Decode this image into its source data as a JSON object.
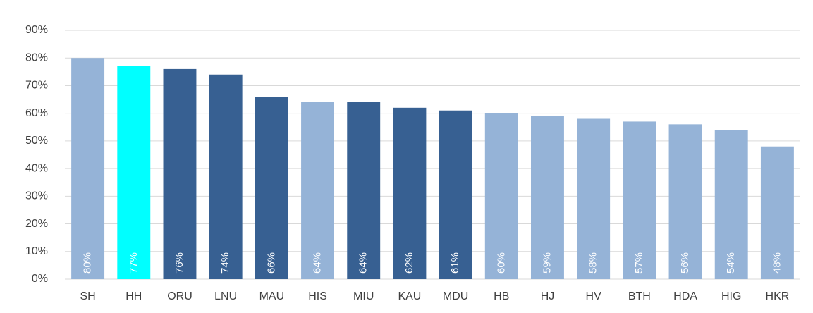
{
  "chart_data": {
    "type": "bar",
    "categories": [
      "SH",
      "HH",
      "ORU",
      "LNU",
      "MAU",
      "HIS",
      "MIU",
      "KAU",
      "MDU",
      "HB",
      "HJ",
      "HV",
      "BTH",
      "HDA",
      "HIG",
      "HKR"
    ],
    "values": [
      80,
      77,
      76,
      74,
      66,
      64,
      64,
      62,
      61,
      60,
      59,
      58,
      57,
      56,
      54,
      48
    ],
    "value_labels": [
      "80%",
      "77%",
      "76%",
      "74%",
      "66%",
      "64%",
      "64%",
      "62%",
      "61%",
      "60%",
      "59%",
      "58%",
      "57%",
      "56%",
      "54%",
      "48%"
    ],
    "colors": [
      "#95b3d7",
      "#00ffff",
      "#376092",
      "#376092",
      "#376092",
      "#95b3d7",
      "#376092",
      "#376092",
      "#376092",
      "#95b3d7",
      "#95b3d7",
      "#95b3d7",
      "#95b3d7",
      "#95b3d7",
      "#95b3d7",
      "#95b3d7"
    ],
    "ylim": [
      0,
      90
    ],
    "yticks": [
      {
        "value": 0,
        "label": "0%"
      },
      {
        "value": 10,
        "label": "10%"
      },
      {
        "value": 20,
        "label": "20%"
      },
      {
        "value": 30,
        "label": "30%"
      },
      {
        "value": 40,
        "label": "40%"
      },
      {
        "value": 50,
        "label": "50%"
      },
      {
        "value": 60,
        "label": "60%"
      },
      {
        "value": 70,
        "label": "70%"
      },
      {
        "value": 80,
        "label": "80%"
      },
      {
        "value": 90,
        "label": "90%"
      }
    ],
    "grid": true
  }
}
